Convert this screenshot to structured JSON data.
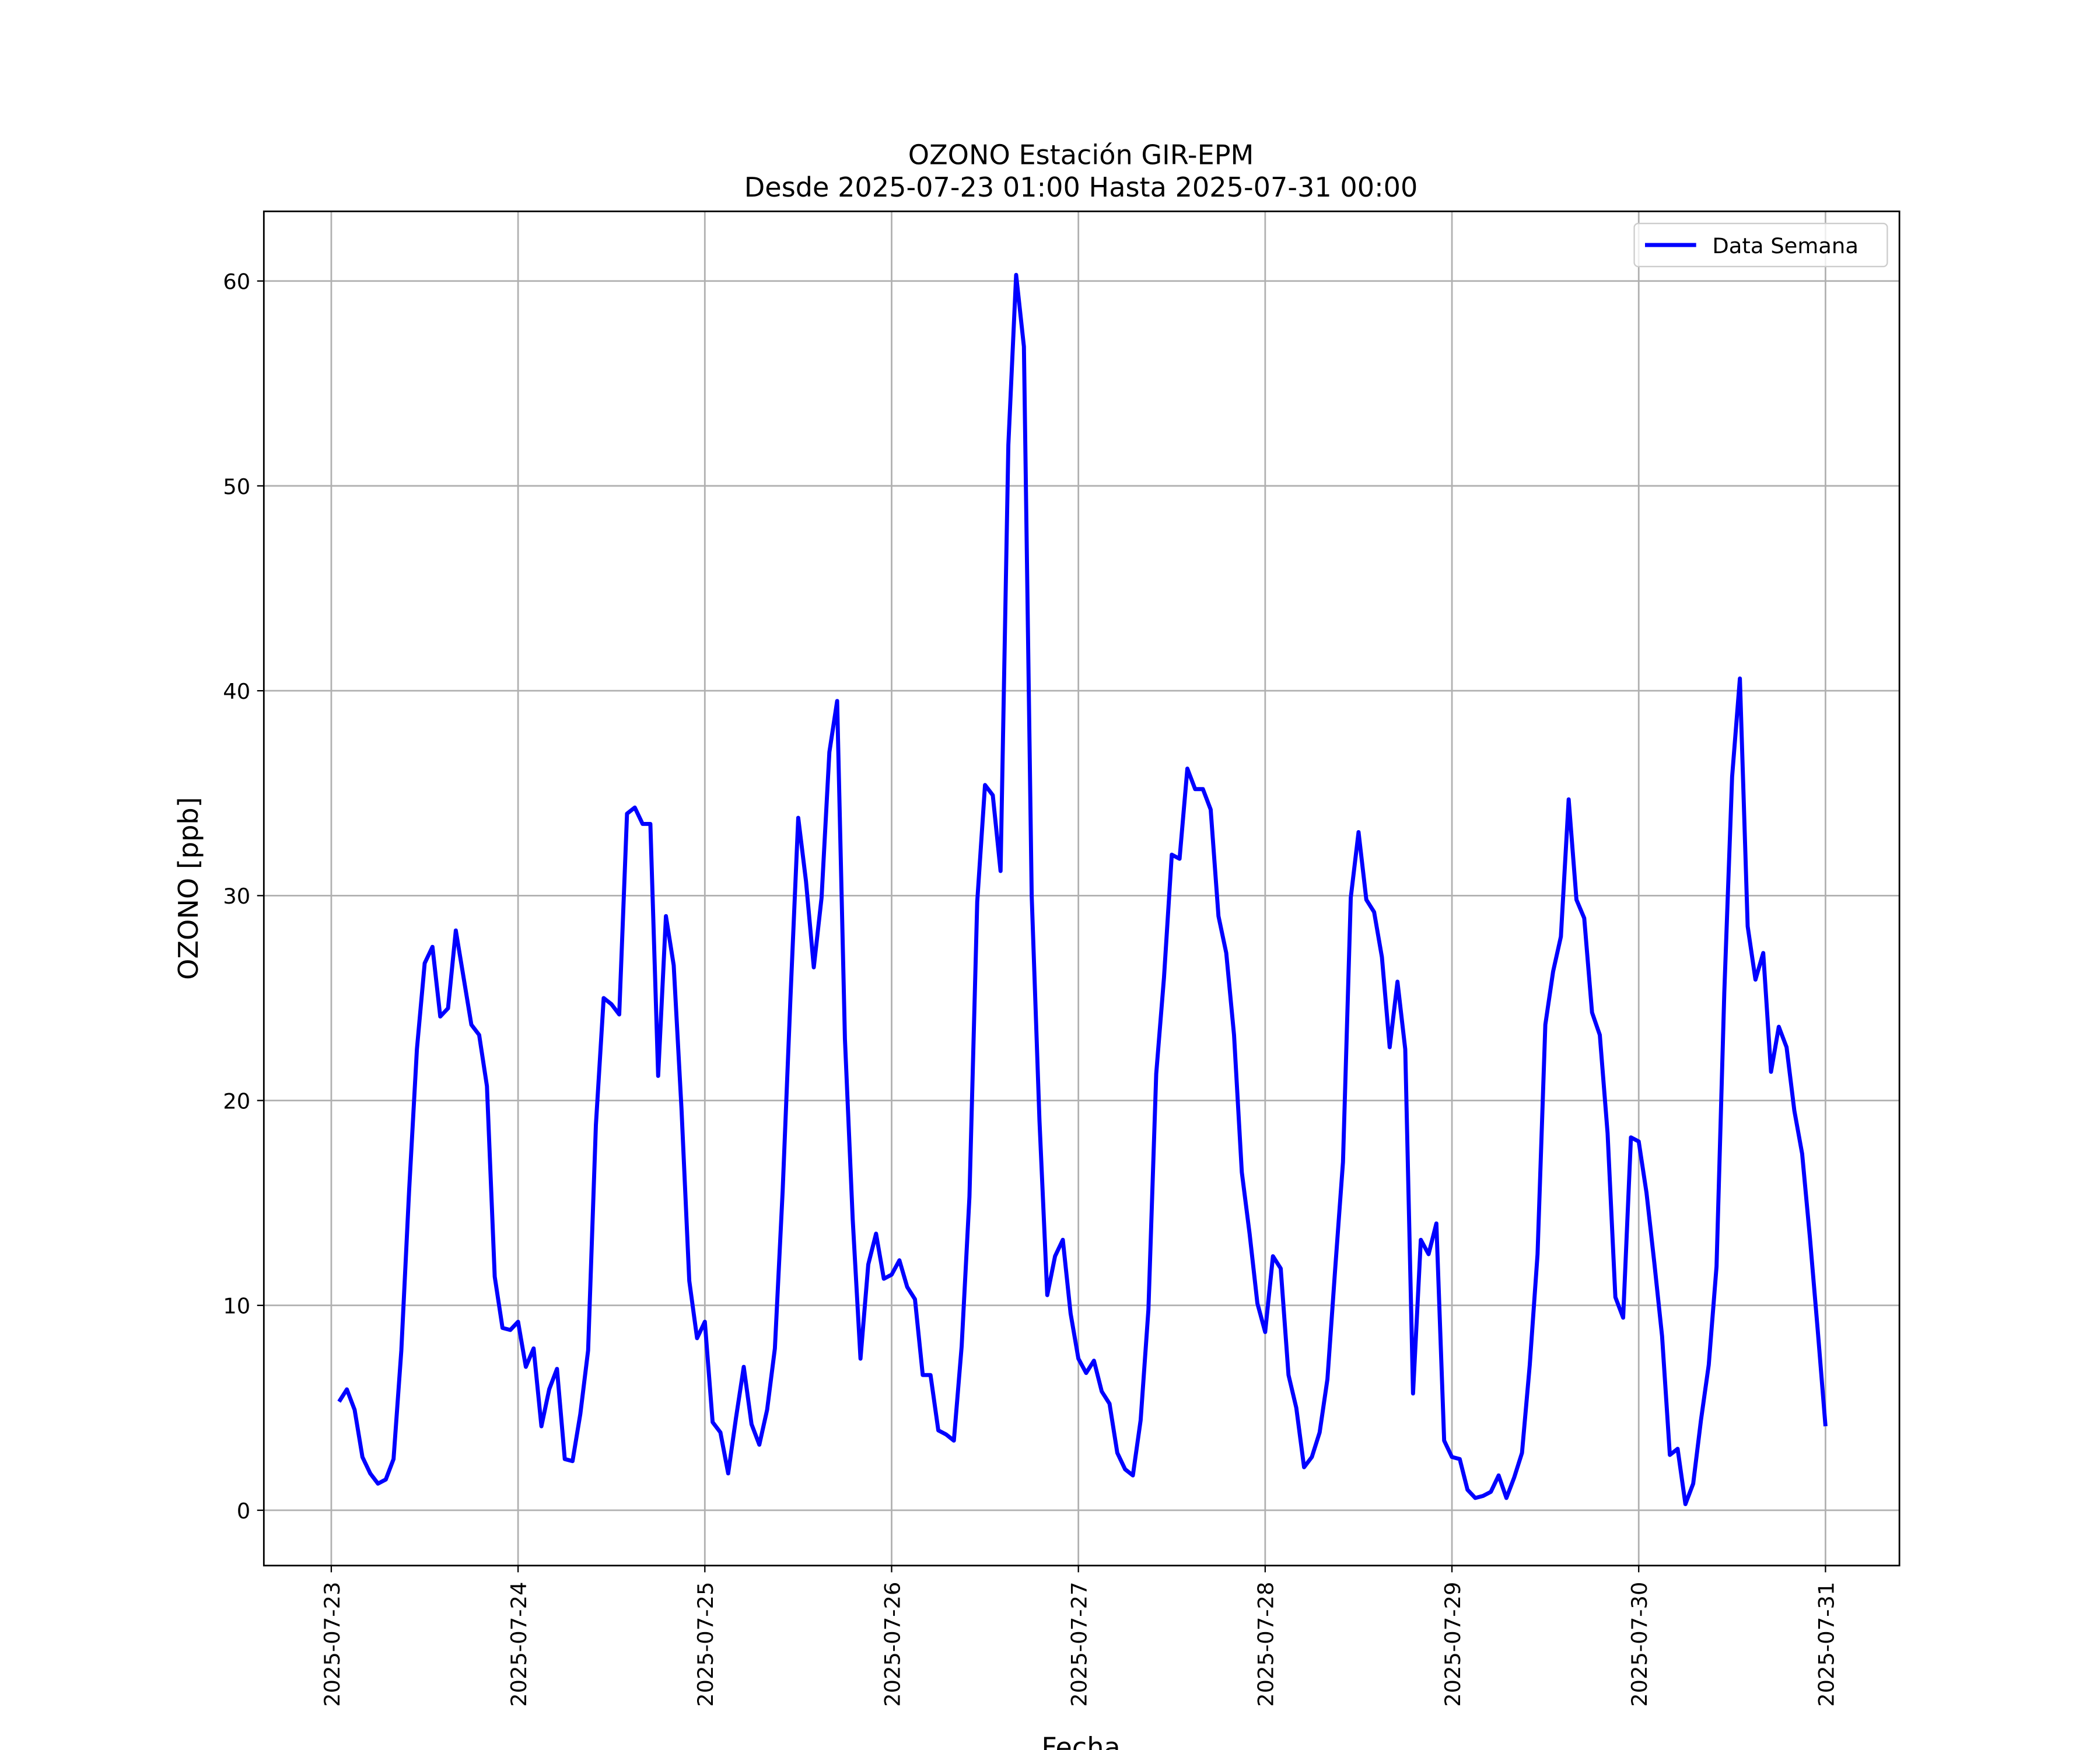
{
  "chart_data": {
    "type": "line",
    "title": "OZONO Estación GIR-EPM",
    "subtitle": "Desde 2025-07-23 01:00 Hasta 2025-07-31 00:00",
    "xlabel": "Fecha",
    "ylabel": "OZONO [ppb]",
    "x": [
      "2025-07-23 01:00",
      "2025-07-23 02:00",
      "2025-07-23 03:00",
      "2025-07-23 04:00",
      "2025-07-23 05:00",
      "2025-07-23 06:00",
      "2025-07-23 07:00",
      "2025-07-23 08:00",
      "2025-07-23 09:00",
      "2025-07-23 10:00",
      "2025-07-23 11:00",
      "2025-07-23 12:00",
      "2025-07-23 13:00",
      "2025-07-23 14:00",
      "2025-07-23 15:00",
      "2025-07-23 16:00",
      "2025-07-23 17:00",
      "2025-07-23 18:00",
      "2025-07-23 19:00",
      "2025-07-23 20:00",
      "2025-07-23 21:00",
      "2025-07-23 22:00",
      "2025-07-23 23:00",
      "2025-07-24 00:00",
      "2025-07-24 01:00",
      "2025-07-24 02:00",
      "2025-07-24 03:00",
      "2025-07-24 04:00",
      "2025-07-24 05:00",
      "2025-07-24 06:00",
      "2025-07-24 07:00",
      "2025-07-24 08:00",
      "2025-07-24 09:00",
      "2025-07-24 10:00",
      "2025-07-24 11:00",
      "2025-07-24 12:00",
      "2025-07-24 13:00",
      "2025-07-24 14:00",
      "2025-07-24 15:00",
      "2025-07-24 16:00",
      "2025-07-24 17:00",
      "2025-07-24 18:00",
      "2025-07-24 19:00",
      "2025-07-24 20:00",
      "2025-07-24 21:00",
      "2025-07-24 22:00",
      "2025-07-24 23:00",
      "2025-07-25 00:00",
      "2025-07-25 01:00",
      "2025-07-25 02:00",
      "2025-07-25 03:00",
      "2025-07-25 04:00",
      "2025-07-25 05:00",
      "2025-07-25 06:00",
      "2025-07-25 07:00",
      "2025-07-25 08:00",
      "2025-07-25 09:00",
      "2025-07-25 10:00",
      "2025-07-25 11:00",
      "2025-07-25 12:00",
      "2025-07-25 13:00",
      "2025-07-25 14:00",
      "2025-07-25 15:00",
      "2025-07-25 16:00",
      "2025-07-25 17:00",
      "2025-07-25 18:00",
      "2025-07-25 19:00",
      "2025-07-25 20:00",
      "2025-07-25 21:00",
      "2025-07-25 22:00",
      "2025-07-25 23:00",
      "2025-07-26 00:00",
      "2025-07-26 01:00",
      "2025-07-26 02:00",
      "2025-07-26 03:00",
      "2025-07-26 04:00",
      "2025-07-26 05:00",
      "2025-07-26 06:00",
      "2025-07-26 07:00",
      "2025-07-26 08:00",
      "2025-07-26 09:00",
      "2025-07-26 10:00",
      "2025-07-26 11:00",
      "2025-07-26 12:00",
      "2025-07-26 13:00",
      "2025-07-26 14:00",
      "2025-07-26 15:00",
      "2025-07-26 16:00",
      "2025-07-26 17:00",
      "2025-07-26 18:00",
      "2025-07-26 19:00",
      "2025-07-26 20:00",
      "2025-07-26 21:00",
      "2025-07-26 22:00",
      "2025-07-26 23:00",
      "2025-07-27 00:00",
      "2025-07-27 01:00",
      "2025-07-27 02:00",
      "2025-07-27 03:00",
      "2025-07-27 04:00",
      "2025-07-27 05:00",
      "2025-07-27 06:00",
      "2025-07-27 07:00",
      "2025-07-27 08:00",
      "2025-07-27 09:00",
      "2025-07-27 10:00",
      "2025-07-27 11:00",
      "2025-07-27 12:00",
      "2025-07-27 13:00",
      "2025-07-27 14:00",
      "2025-07-27 15:00",
      "2025-07-27 16:00",
      "2025-07-27 17:00",
      "2025-07-27 18:00",
      "2025-07-27 19:00",
      "2025-07-27 20:00",
      "2025-07-27 21:00",
      "2025-07-27 22:00",
      "2025-07-27 23:00",
      "2025-07-28 00:00",
      "2025-07-28 01:00",
      "2025-07-28 02:00",
      "2025-07-28 03:00",
      "2025-07-28 04:00",
      "2025-07-28 05:00",
      "2025-07-28 06:00",
      "2025-07-28 07:00",
      "2025-07-28 08:00",
      "2025-07-28 09:00",
      "2025-07-28 10:00",
      "2025-07-28 11:00",
      "2025-07-28 12:00",
      "2025-07-28 13:00",
      "2025-07-28 14:00",
      "2025-07-28 15:00",
      "2025-07-28 16:00",
      "2025-07-28 17:00",
      "2025-07-28 18:00",
      "2025-07-28 19:00",
      "2025-07-28 20:00",
      "2025-07-28 21:00",
      "2025-07-28 22:00",
      "2025-07-28 23:00",
      "2025-07-29 00:00",
      "2025-07-29 01:00",
      "2025-07-29 02:00",
      "2025-07-29 03:00",
      "2025-07-29 04:00",
      "2025-07-29 05:00",
      "2025-07-29 06:00",
      "2025-07-29 07:00",
      "2025-07-29 08:00",
      "2025-07-29 09:00",
      "2025-07-29 10:00",
      "2025-07-29 11:00",
      "2025-07-29 12:00",
      "2025-07-29 13:00",
      "2025-07-29 14:00",
      "2025-07-29 15:00",
      "2025-07-29 16:00",
      "2025-07-29 17:00",
      "2025-07-29 18:00",
      "2025-07-29 19:00",
      "2025-07-29 20:00",
      "2025-07-29 21:00",
      "2025-07-29 22:00",
      "2025-07-29 23:00",
      "2025-07-30 00:00",
      "2025-07-30 01:00",
      "2025-07-30 02:00",
      "2025-07-30 03:00",
      "2025-07-30 04:00",
      "2025-07-30 05:00",
      "2025-07-30 06:00",
      "2025-07-30 07:00",
      "2025-07-30 08:00",
      "2025-07-30 09:00",
      "2025-07-30 10:00",
      "2025-07-30 11:00",
      "2025-07-30 12:00",
      "2025-07-30 13:00",
      "2025-07-30 14:00",
      "2025-07-30 15:00",
      "2025-07-30 16:00",
      "2025-07-30 17:00",
      "2025-07-30 18:00",
      "2025-07-30 19:00",
      "2025-07-30 20:00",
      "2025-07-30 21:00",
      "2025-07-30 22:00",
      "2025-07-30 23:00",
      "2025-07-31 00:00"
    ],
    "series": [
      {
        "name": "Data Semana",
        "color": "#0000ff",
        "values": [
          5.3,
          5.9,
          4.9,
          2.6,
          1.8,
          1.3,
          1.5,
          2.5,
          7.8,
          15.6,
          22.5,
          26.7,
          27.5,
          24.1,
          24.5,
          28.3,
          26.0,
          23.7,
          23.2,
          20.7,
          11.4,
          8.9,
          8.8,
          9.2,
          7.0,
          7.9,
          4.1,
          5.9,
          6.9,
          2.5,
          2.4,
          4.7,
          7.8,
          18.8,
          25.0,
          24.7,
          24.2,
          34.0,
          34.3,
          33.5,
          33.5,
          21.2,
          29.0,
          26.6,
          19.6,
          11.2,
          8.4,
          9.2,
          4.3,
          3.8,
          1.8,
          4.5,
          7.0,
          4.2,
          3.2,
          4.9,
          7.9,
          15.6,
          25.0,
          33.8,
          30.7,
          26.5,
          29.9,
          37.0,
          39.5,
          23.0,
          14.2,
          7.4,
          12.0,
          13.5,
          11.3,
          11.5,
          12.2,
          10.9,
          10.3,
          6.6,
          6.6,
          3.9,
          3.7,
          3.4,
          8.0,
          15.3,
          29.7,
          35.4,
          34.9,
          31.2,
          52.0,
          60.3,
          56.8,
          30.0,
          19.0,
          10.5,
          12.4,
          13.2,
          9.6,
          7.4,
          6.7,
          7.3,
          5.8,
          5.2,
          2.8,
          2.0,
          1.7,
          4.4,
          9.8,
          21.3,
          26.0,
          32.0,
          31.8,
          36.2,
          35.2,
          35.2,
          34.2,
          29.0,
          27.2,
          23.2,
          16.5,
          13.5,
          10.1,
          8.7,
          12.4,
          11.8,
          6.6,
          5.0,
          2.1,
          2.6,
          3.8,
          6.4,
          11.8,
          17.0,
          29.9,
          33.1,
          29.8,
          29.2,
          27.0,
          22.6,
          25.8,
          22.5,
          5.7,
          13.2,
          12.5,
          14.0,
          3.4,
          2.6,
          2.5,
          1.0,
          0.6,
          0.7,
          0.9,
          1.7,
          0.6,
          1.6,
          2.8,
          7.1,
          12.5,
          23.7,
          26.3,
          28.0,
          34.7,
          29.8,
          28.9,
          24.3,
          23.2,
          18.4,
          10.4,
          9.4,
          18.2,
          18.0,
          15.5,
          12.1,
          8.5,
          2.7,
          3.0,
          0.3,
          1.3,
          4.4,
          7.1,
          11.9,
          25.3,
          35.8,
          40.6,
          28.5,
          25.9,
          27.2,
          21.4,
          23.6,
          22.6,
          19.5,
          17.4,
          13.3,
          8.8,
          4.1
        ]
      }
    ],
    "xlim": [
      "2025-07-22 15:20",
      "2025-07-31 09:30"
    ],
    "xticks": [
      "2025-07-23",
      "2025-07-24",
      "2025-07-25",
      "2025-07-26",
      "2025-07-27",
      "2025-07-28",
      "2025-07-29",
      "2025-07-30",
      "2025-07-31"
    ],
    "ylim": [
      -2.7,
      63.4
    ],
    "yticks": [
      0,
      10,
      20,
      30,
      40,
      50,
      60
    ],
    "grid": true,
    "legend": "upper right"
  }
}
